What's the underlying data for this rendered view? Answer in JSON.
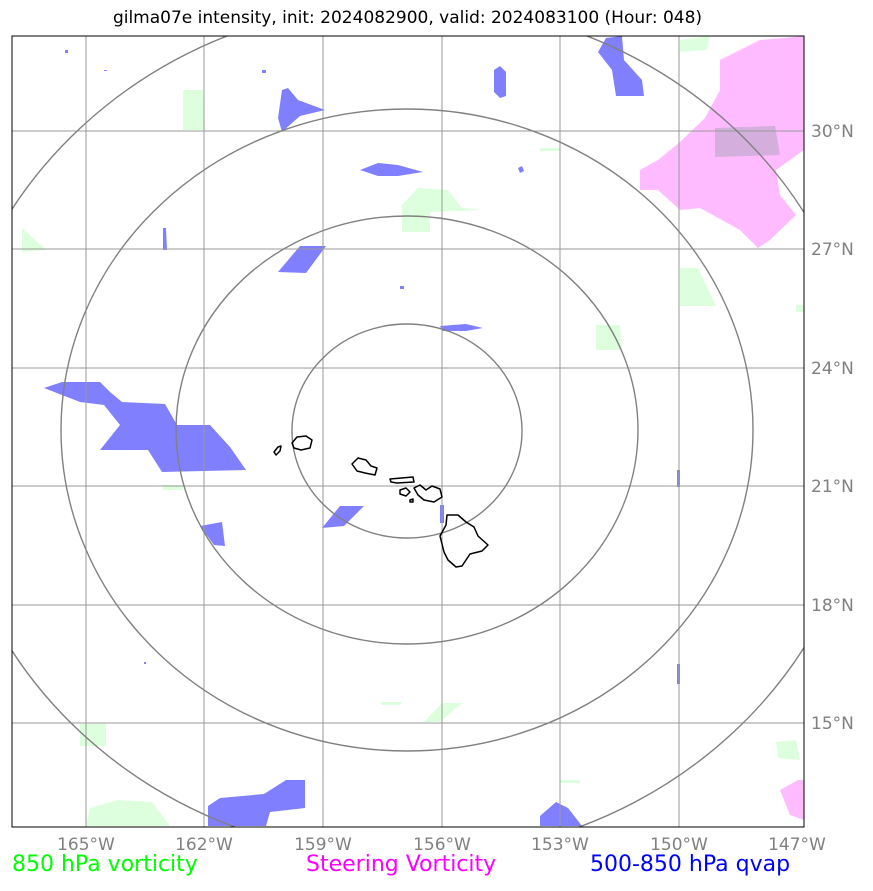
{
  "title": "gilma07e intensity, init: 2024082900, valid: 2024083100 (Hour: 048)",
  "map": {
    "lon_range": [
      -166.75,
      -146.75
    ],
    "lat_range": [
      12.0,
      32.5
    ],
    "lon_ticks": [
      "165°W",
      "162°W",
      "159°W",
      "156°W",
      "153°W",
      "150°W",
      "147°W"
    ],
    "lat_ticks": [
      "15°N",
      "18°N",
      "21°N",
      "24°N",
      "27°N",
      "30°N"
    ],
    "range_rings": 4,
    "center": {
      "lon": -157.0,
      "lat": 22.3
    },
    "gridline_color": "#999999",
    "ring_color": "#808080",
    "coastline_color": "#000000"
  },
  "legend": [
    {
      "label": "850 hPa vorticity",
      "color": "#00ff00"
    },
    {
      "label": "Steering Vorticity",
      "color": "#ff00ff"
    },
    {
      "label": "500-850 hPa qvap",
      "color": "#0000ff"
    }
  ],
  "fills": {
    "vorticity_850": "#ddffdd",
    "steering": "#ffbbff",
    "qvap": "#8080ff"
  }
}
